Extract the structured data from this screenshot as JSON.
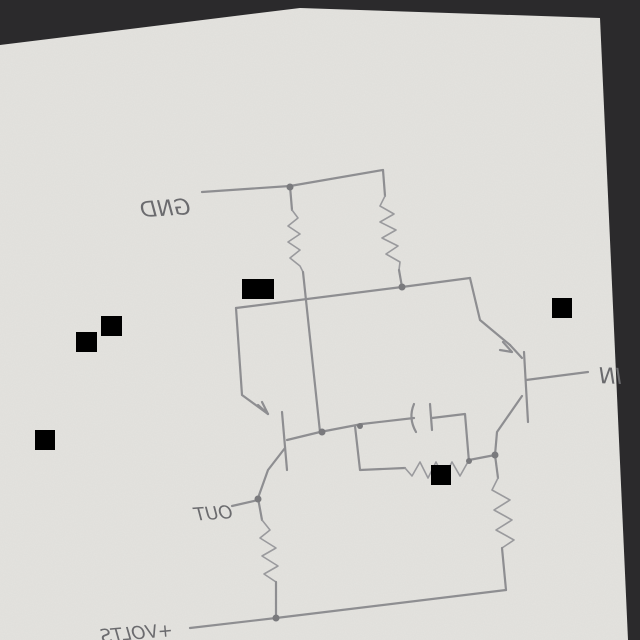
{
  "labels": {
    "gnd": "GND",
    "in": "IN",
    "out": "OUT",
    "volts": "+VOLTS"
  },
  "colors": {
    "paper": "#e4e3df",
    "background": "#2b2a2c",
    "ink": "#8e8e91",
    "redaction": "#000000"
  }
}
